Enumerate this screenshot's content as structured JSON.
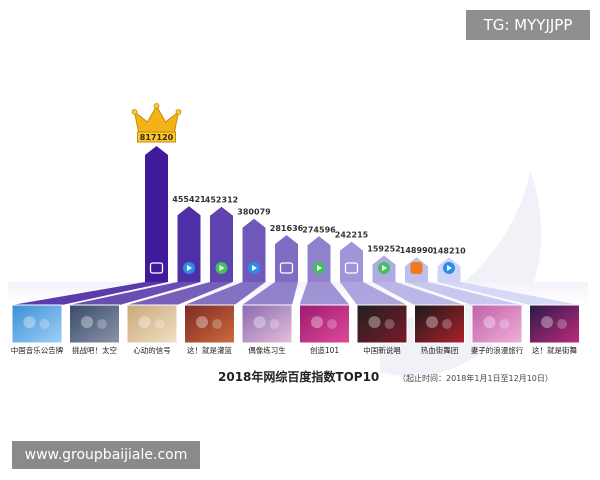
{
  "watermarks": {
    "top_right": "TG: MYYJJPP",
    "bottom_left": "www.groupbaijiale.com"
  },
  "chart_data": {
    "type": "bar",
    "title": "2018年网综百度指数TOP10",
    "subtitle": "（起止时间：2018年1月1日至12月10日）",
    "categories": [
      "中国音乐公告牌",
      "挑战吧！太空",
      "心动的信号",
      "这！就是灌篮",
      "偶像练习生",
      "创造101",
      "中国新说唱",
      "热血街舞团",
      "妻子的浪漫旅行",
      "这！就是街舞"
    ],
    "values": [
      817120,
      455421,
      452312,
      380079,
      281636,
      274596,
      242215,
      159252,
      148990,
      148210
    ],
    "value_labels": [
      "817120",
      "455421",
      "452312",
      "380079",
      "281636",
      "274596",
      "242215",
      "159252",
      "148990",
      "148210"
    ],
    "platform_icons": [
      "iqiyi-icon",
      "youku-icon",
      "tencent-video-icon",
      "youku-icon",
      "iqiyi-icon",
      "tencent-video-icon",
      "iqiyi-icon",
      "tencent-video-icon",
      "mango-tv-icon",
      "youku-icon"
    ],
    "top_marker": "crown-icon",
    "colors": {
      "top_bar": "#3f1a9b",
      "bottom_bar": "#cfd3f6",
      "crown": "#f2b318"
    },
    "ylim": [
      0,
      817120
    ],
    "grid": false,
    "legend": "none"
  }
}
